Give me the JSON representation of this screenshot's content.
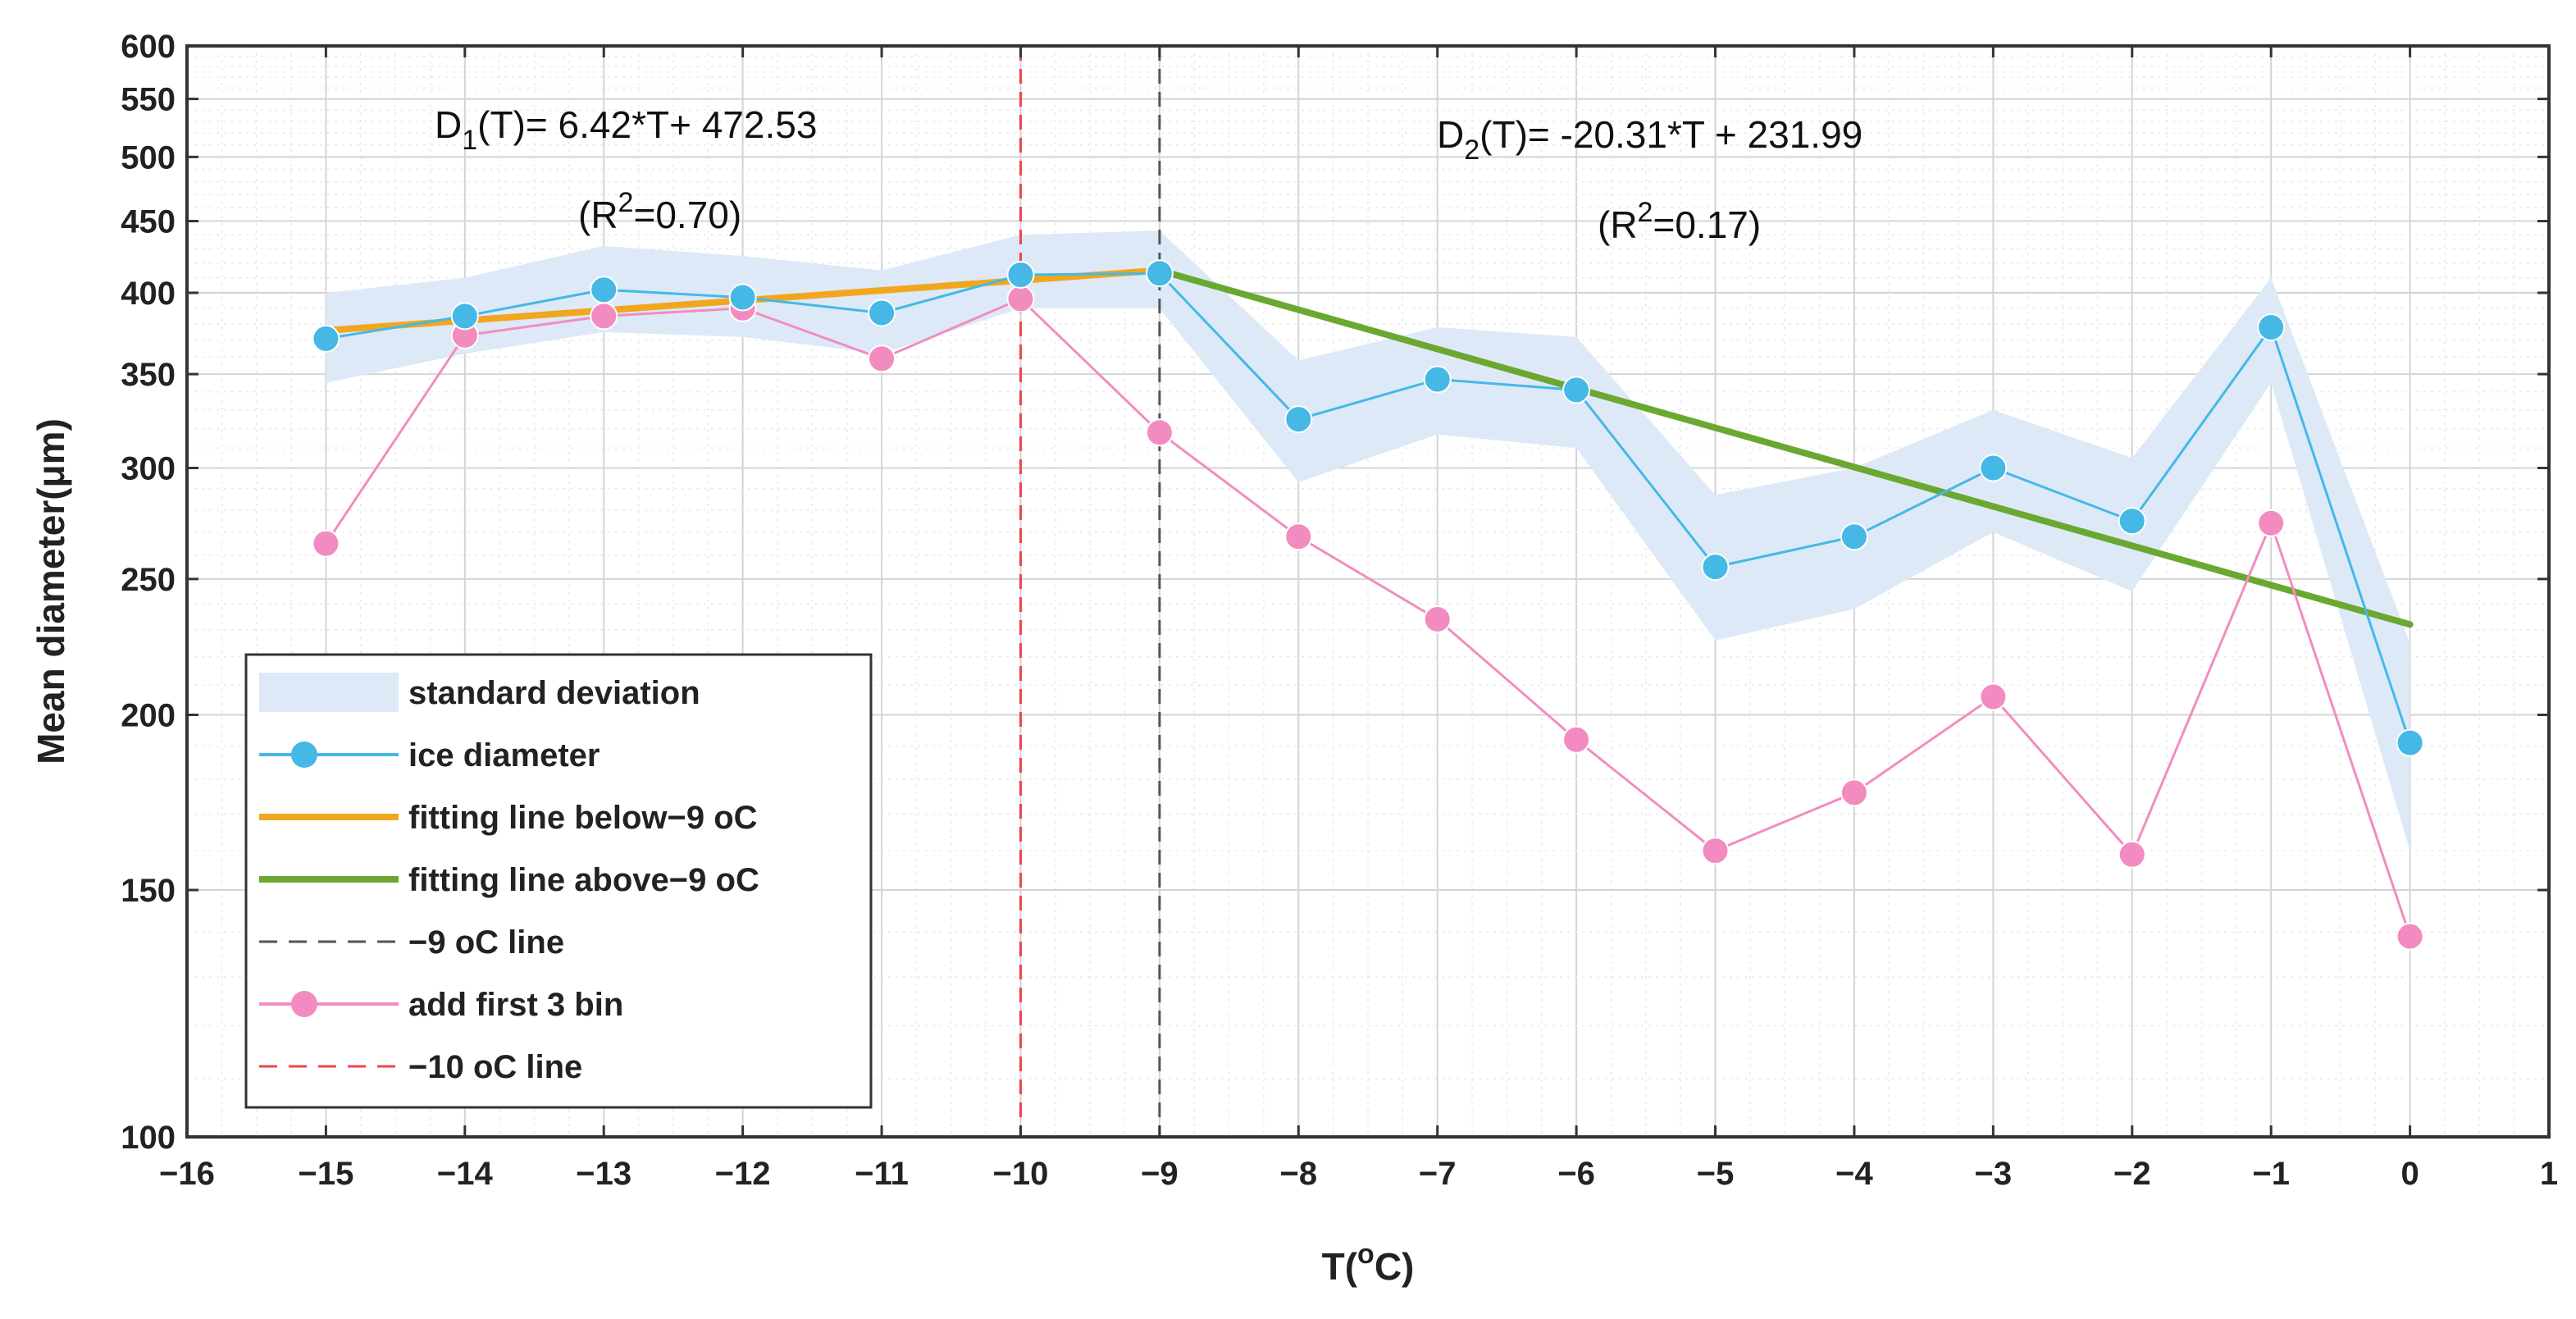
{
  "chart_data": {
    "type": "line",
    "xlabel": "T(oC)",
    "xlabel_parts": {
      "main": "T(",
      "sup": "o",
      "tail": "C)"
    },
    "ylabel": "Mean diameter(μm)",
    "xlim": [
      -16,
      1
    ],
    "ylim": [
      100,
      600
    ],
    "yscale": "log",
    "grid": true,
    "legend_position": "lower-left",
    "x_ticks": [
      "−16",
      "−15",
      "−14",
      "−13",
      "−12",
      "−11",
      "−10",
      "−9",
      "−8",
      "−7",
      "−6",
      "−5",
      "−4",
      "−3",
      "−2",
      "−1",
      "0",
      "1"
    ],
    "x_tick_values": [
      -16,
      -15,
      -14,
      -13,
      -12,
      -11,
      -10,
      -9,
      -8,
      -7,
      -6,
      -5,
      -4,
      -3,
      -2,
      -1,
      0,
      1
    ],
    "y_ticks": [
      "100",
      "150",
      "200",
      "250",
      "300",
      "350",
      "400",
      "450",
      "500",
      "550",
      "600"
    ],
    "y_tick_values": [
      100,
      150,
      200,
      250,
      300,
      350,
      400,
      450,
      500,
      550,
      600
    ],
    "x": [
      -15,
      -14,
      -13,
      -12,
      -11,
      -10,
      -9,
      -8,
      -7,
      -6,
      -5,
      -4,
      -3,
      -2,
      -1,
      0
    ],
    "series": [
      {
        "name": "ice diameter",
        "color": "#45b8e6",
        "marker": "circle",
        "values": [
          371,
          385,
          402,
          397,
          387,
          412,
          413,
          325,
          347,
          341,
          255,
          268,
          300,
          275,
          378,
          191
        ]
      },
      {
        "name": "add first 3 bin",
        "color": "#f28cc0",
        "marker": "circle",
        "values": [
          265,
          373,
          385,
          390,
          359,
          396,
          318,
          268,
          234,
          192,
          160,
          176,
          206,
          159,
          274,
          139
        ]
      }
    ],
    "band": {
      "name": "standard deviation",
      "color": "#dde9f7",
      "lower": [
        345,
        362,
        375,
        372,
        362,
        390,
        390,
        293,
        317,
        310,
        226,
        238,
        270,
        245,
        345,
        160
      ],
      "upper": [
        400,
        410,
        432,
        425,
        415,
        440,
        443,
        358,
        378,
        372,
        287,
        300,
        330,
        305,
        410,
        225
      ]
    },
    "fit_lines": [
      {
        "name": "fitting line below−9 oC",
        "color": "#f0a71f",
        "x": [
          -15,
          -9
        ],
        "y": [
          376,
          415
        ]
      },
      {
        "name": "fitting line above−9 oC",
        "color": "#6aa832",
        "x": [
          -9,
          0
        ],
        "y": [
          415,
          232
        ]
      }
    ],
    "vlines": [
      {
        "name": "−9 oC line",
        "x": -9,
        "color": "#555555",
        "dash": "dashed"
      },
      {
        "name": "−10 oC line",
        "x": -10,
        "color": "#e8474d",
        "dash": "dashed"
      }
    ],
    "annotations": {
      "d1": {
        "main": "D",
        "sub": "1",
        "rest": "(T)=  6.42*T+ 472.53"
      },
      "r1": {
        "pre": "(R",
        "sup": "2",
        "post": "=0.70)"
      },
      "d2": {
        "main": "D",
        "sub": "2",
        "rest": "(T)= -20.31*T + 231.99"
      },
      "r2": {
        "pre": "(R",
        "sup": "2",
        "post": "=0.17)"
      }
    },
    "legend": [
      {
        "label": "standard deviation",
        "kind": "band",
        "color": "#dde9f7"
      },
      {
        "label": "ice diameter",
        "kind": "line-marker",
        "color": "#45b8e6"
      },
      {
        "label": "fitting line below−9  oC",
        "kind": "line",
        "color": "#f0a71f"
      },
      {
        "label": "fitting line above−9  oC",
        "kind": "line",
        "color": "#6aa832"
      },
      {
        "label": "−9 oC line",
        "kind": "dash",
        "color": "#555555"
      },
      {
        "label": "add first 3 bin",
        "kind": "line-marker",
        "color": "#f28cc0"
      },
      {
        "label": "−10 oC line",
        "kind": "dash",
        "color": "#e8474d"
      }
    ]
  }
}
